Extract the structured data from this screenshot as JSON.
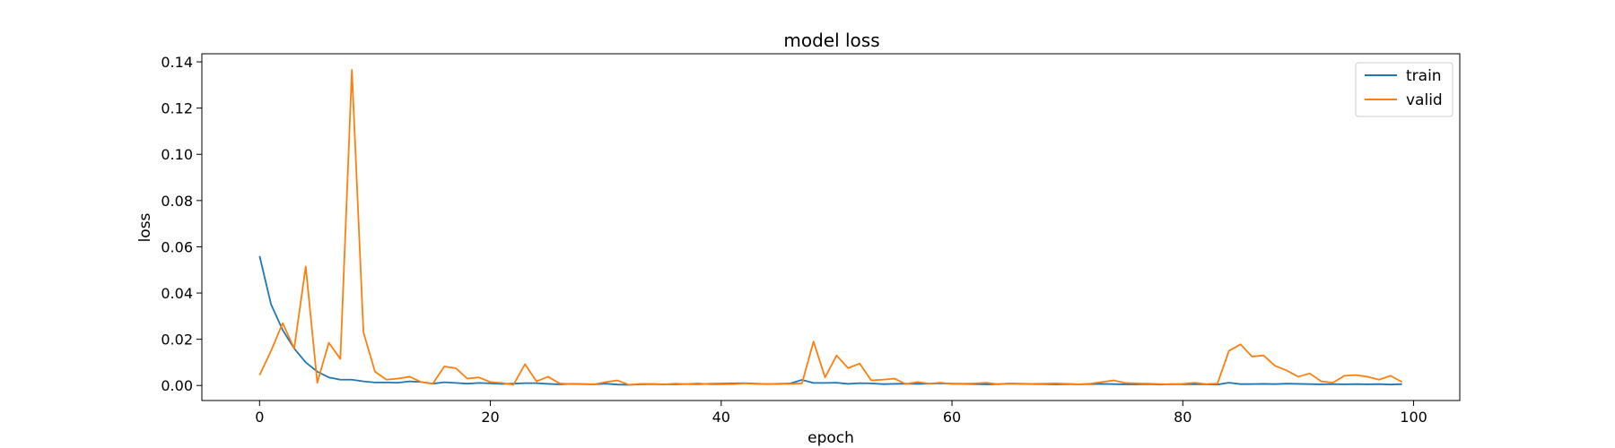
{
  "chart_data": {
    "type": "line",
    "title": "model loss",
    "xlabel": "epoch",
    "ylabel": "loss",
    "xlim": [
      -5,
      104
    ],
    "ylim": [
      -0.0065,
      0.1435
    ],
    "xticks": [
      0,
      20,
      40,
      60,
      80,
      100
    ],
    "xtick_labels": [
      "0",
      "20",
      "40",
      "60",
      "80",
      "100"
    ],
    "yticks": [
      0.0,
      0.02,
      0.04,
      0.06,
      0.08,
      0.1,
      0.12,
      0.14
    ],
    "ytick_labels": [
      "0.00",
      "0.02",
      "0.04",
      "0.06",
      "0.08",
      "0.10",
      "0.12",
      "0.14"
    ],
    "grid": false,
    "legend_position": "top-right",
    "series": [
      {
        "name": "train",
        "color": "#1f77b4",
        "values": [
          0.056,
          0.035,
          0.024,
          0.016,
          0.01,
          0.006,
          0.0035,
          0.0025,
          0.0025,
          0.0018,
          0.0013,
          0.0013,
          0.0012,
          0.0018,
          0.0015,
          0.0008,
          0.0014,
          0.0011,
          0.0008,
          0.0011,
          0.0009,
          0.0007,
          0.0008,
          0.001,
          0.001,
          0.0007,
          0.0005,
          0.0007,
          0.0006,
          0.0005,
          0.0008,
          0.0004,
          0.0003,
          0.0005,
          0.0006,
          0.0005,
          0.0005,
          0.0006,
          0.0006,
          0.0007,
          0.0008,
          0.0009,
          0.001,
          0.0008,
          0.0006,
          0.0007,
          0.0009,
          0.0024,
          0.0011,
          0.0011,
          0.0012,
          0.0007,
          0.001,
          0.0009,
          0.0006,
          0.0007,
          0.0008,
          0.0007,
          0.0008,
          0.0009,
          0.0008,
          0.0007,
          0.0006,
          0.0005,
          0.0006,
          0.0008,
          0.0007,
          0.0006,
          0.0006,
          0.0005,
          0.0006,
          0.0005,
          0.0006,
          0.0007,
          0.0006,
          0.0005,
          0.0005,
          0.0006,
          0.0004,
          0.0006,
          0.0005,
          0.0006,
          0.0005,
          0.0004,
          0.0012,
          0.0006,
          0.0006,
          0.0007,
          0.0006,
          0.0008,
          0.0007,
          0.0006,
          0.0005,
          0.0006,
          0.0005,
          0.0006,
          0.0005,
          0.0006,
          0.0004,
          0.0006
        ]
      },
      {
        "name": "valid",
        "color": "#ff7f0e",
        "values": [
          0.0045,
          0.015,
          0.027,
          0.016,
          0.0515,
          0.0012,
          0.0185,
          0.0115,
          0.1365,
          0.023,
          0.006,
          0.0025,
          0.003,
          0.0038,
          0.0015,
          0.0007,
          0.0082,
          0.0075,
          0.003,
          0.0035,
          0.0015,
          0.0011,
          0.0003,
          0.0092,
          0.0018,
          0.0038,
          0.0009,
          0.0006,
          0.0006,
          0.0005,
          0.0015,
          0.0022,
          0.0003,
          0.0007,
          0.0007,
          0.0004,
          0.0008,
          0.0006,
          0.0009,
          0.0005,
          0.0005,
          0.0006,
          0.0009,
          0.0007,
          0.0006,
          0.0008,
          0.0007,
          0.0009,
          0.019,
          0.0035,
          0.013,
          0.0075,
          0.0095,
          0.0022,
          0.0025,
          0.003,
          0.0006,
          0.0015,
          0.0008,
          0.0012,
          0.0007,
          0.0008,
          0.0009,
          0.0012,
          0.0005,
          0.0009,
          0.0008,
          0.0007,
          0.0008,
          0.0009,
          0.0007,
          0.0005,
          0.0008,
          0.0015,
          0.0022,
          0.0011,
          0.0009,
          0.0008,
          0.0006,
          0.0005,
          0.0007,
          0.0012,
          0.0006,
          0.0008,
          0.015,
          0.0178,
          0.0125,
          0.013,
          0.0085,
          0.0065,
          0.0038,
          0.0052,
          0.0018,
          0.0012,
          0.0042,
          0.0045,
          0.0038,
          0.0025,
          0.0042,
          0.0015
        ]
      }
    ]
  }
}
